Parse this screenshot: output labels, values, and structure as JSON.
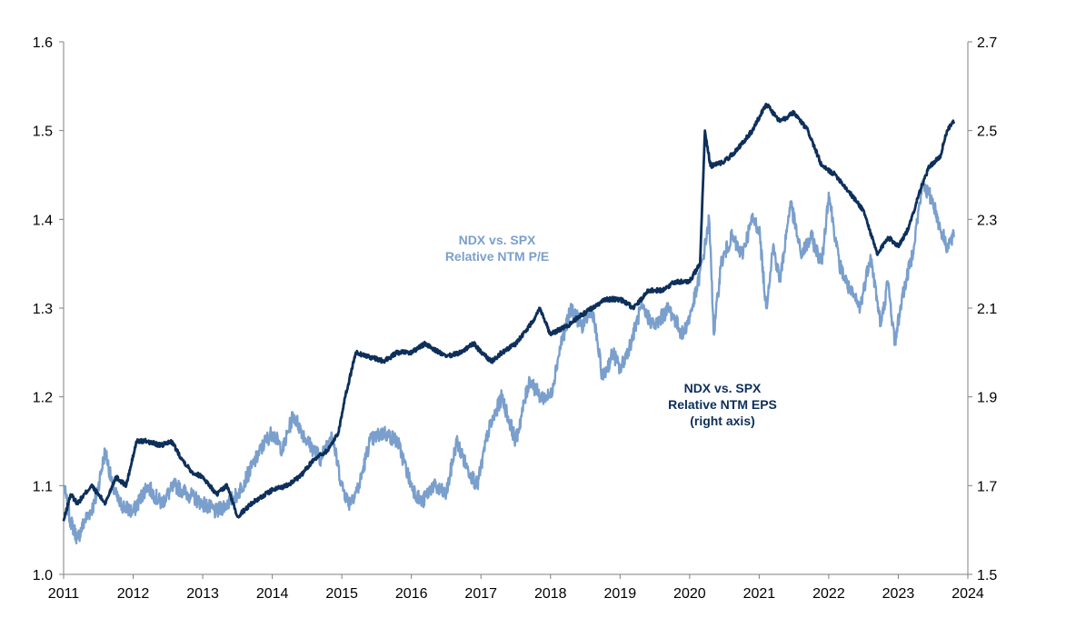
{
  "chart_data": {
    "type": "line",
    "title": "",
    "xlabel": "",
    "ylabel": "",
    "xlim": [
      2011,
      2024
    ],
    "x_ticks": [
      "2011",
      "2012",
      "2013",
      "2014",
      "2015",
      "2016",
      "2017",
      "2018",
      "2019",
      "2020",
      "2021",
      "2022",
      "2023",
      "2024"
    ],
    "y_left": {
      "lim": [
        1.0,
        1.6
      ],
      "ticks": [
        "1.0",
        "1.1",
        "1.2",
        "1.3",
        "1.4",
        "1.5",
        "1.6"
      ]
    },
    "y_right": {
      "lim": [
        1.5,
        2.7
      ],
      "ticks": [
        "1.5",
        "1.7",
        "1.9",
        "2.1",
        "2.3",
        "2.5",
        "2.7"
      ]
    },
    "grid": false,
    "colors": {
      "pe": "#7a9fcc",
      "eps": "#0d2f5a",
      "axis": "#808080"
    },
    "annotations": {
      "pe": [
        "NDX vs. SPX",
        "Relative NTM P/E"
      ],
      "eps": [
        "NDX vs. SPX",
        "Relative NTM EPS",
        "(right axis)"
      ]
    },
    "series": [
      {
        "axis": "left",
        "x": [
          2011.0,
          2011.1,
          2011.2,
          2011.3,
          2011.45,
          2011.6,
          2011.7,
          2011.8,
          2012.0,
          2012.2,
          2012.4,
          2012.6,
          2012.8,
          2013.0,
          2013.2,
          2013.5,
          2013.7,
          2013.9,
          2014.0,
          2014.15,
          2014.3,
          2014.5,
          2014.7,
          2014.85,
          2015.0,
          2015.1,
          2015.25,
          2015.4,
          2015.6,
          2015.8,
          2016.0,
          2016.15,
          2016.3,
          2016.5,
          2016.65,
          2016.8,
          2016.95,
          2017.1,
          2017.3,
          2017.5,
          2017.7,
          2017.85,
          2018.0,
          2018.15,
          2018.3,
          2018.45,
          2018.6,
          2018.75,
          2018.9,
          2019.0,
          2019.15,
          2019.3,
          2019.5,
          2019.7,
          2019.9,
          2020.0,
          2020.1,
          2020.2,
          2020.28,
          2020.35,
          2020.45,
          2020.6,
          2020.75,
          2020.9,
          2021.0,
          2021.1,
          2021.2,
          2021.3,
          2021.45,
          2021.6,
          2021.75,
          2021.9,
          2022.0,
          2022.15,
          2022.3,
          2022.45,
          2022.6,
          2022.75,
          2022.85,
          2022.95,
          2023.05,
          2023.2,
          2023.35,
          2023.5,
          2023.6,
          2023.7,
          2023.8
        ],
        "values": [
          1.1,
          1.06,
          1.04,
          1.06,
          1.08,
          1.14,
          1.1,
          1.08,
          1.07,
          1.1,
          1.08,
          1.1,
          1.09,
          1.08,
          1.07,
          1.09,
          1.12,
          1.15,
          1.16,
          1.14,
          1.18,
          1.15,
          1.13,
          1.16,
          1.1,
          1.08,
          1.1,
          1.15,
          1.16,
          1.15,
          1.1,
          1.08,
          1.1,
          1.09,
          1.15,
          1.12,
          1.1,
          1.16,
          1.2,
          1.15,
          1.22,
          1.2,
          1.2,
          1.26,
          1.3,
          1.28,
          1.3,
          1.22,
          1.25,
          1.23,
          1.26,
          1.3,
          1.28,
          1.3,
          1.27,
          1.29,
          1.32,
          1.36,
          1.4,
          1.27,
          1.35,
          1.38,
          1.36,
          1.4,
          1.39,
          1.3,
          1.37,
          1.33,
          1.42,
          1.36,
          1.38,
          1.35,
          1.43,
          1.35,
          1.32,
          1.3,
          1.36,
          1.28,
          1.33,
          1.26,
          1.31,
          1.36,
          1.44,
          1.42,
          1.39,
          1.37,
          1.38
        ]
      },
      {
        "axis": "right",
        "x": [
          2011.0,
          2011.1,
          2011.2,
          2011.4,
          2011.6,
          2011.75,
          2011.9,
          2012.05,
          2012.2,
          2012.4,
          2012.55,
          2012.7,
          2012.85,
          2013.0,
          2013.2,
          2013.35,
          2013.5,
          2013.7,
          2013.9,
          2014.0,
          2014.2,
          2014.4,
          2014.6,
          2014.8,
          2014.95,
          2015.05,
          2015.2,
          2015.4,
          2015.6,
          2015.8,
          2016.0,
          2016.2,
          2016.4,
          2016.5,
          2016.7,
          2016.9,
          2017.0,
          2017.15,
          2017.3,
          2017.5,
          2017.7,
          2017.85,
          2018.0,
          2018.1,
          2018.25,
          2018.4,
          2018.6,
          2018.8,
          2019.0,
          2019.2,
          2019.4,
          2019.6,
          2019.8,
          2020.0,
          2020.15,
          2020.22,
          2020.3,
          2020.5,
          2020.7,
          2020.9,
          2021.1,
          2021.3,
          2021.5,
          2021.7,
          2021.9,
          2022.1,
          2022.3,
          2022.5,
          2022.7,
          2022.85,
          2023.0,
          2023.15,
          2023.3,
          2023.45,
          2023.6,
          2023.7,
          2023.8
        ],
        "values": [
          1.62,
          1.68,
          1.66,
          1.7,
          1.66,
          1.72,
          1.7,
          1.8,
          1.8,
          1.79,
          1.8,
          1.76,
          1.73,
          1.72,
          1.68,
          1.7,
          1.63,
          1.66,
          1.68,
          1.69,
          1.7,
          1.72,
          1.76,
          1.78,
          1.82,
          1.9,
          2.0,
          1.99,
          1.98,
          2.0,
          2.0,
          2.02,
          2.0,
          1.99,
          2.0,
          2.02,
          2.0,
          1.98,
          2.0,
          2.02,
          2.06,
          2.1,
          2.04,
          2.05,
          2.06,
          2.08,
          2.1,
          2.12,
          2.12,
          2.1,
          2.14,
          2.14,
          2.16,
          2.16,
          2.2,
          2.5,
          2.42,
          2.43,
          2.46,
          2.5,
          2.56,
          2.52,
          2.54,
          2.5,
          2.42,
          2.4,
          2.36,
          2.32,
          2.22,
          2.26,
          2.24,
          2.28,
          2.36,
          2.42,
          2.44,
          2.5,
          2.52
        ]
      }
    ]
  }
}
